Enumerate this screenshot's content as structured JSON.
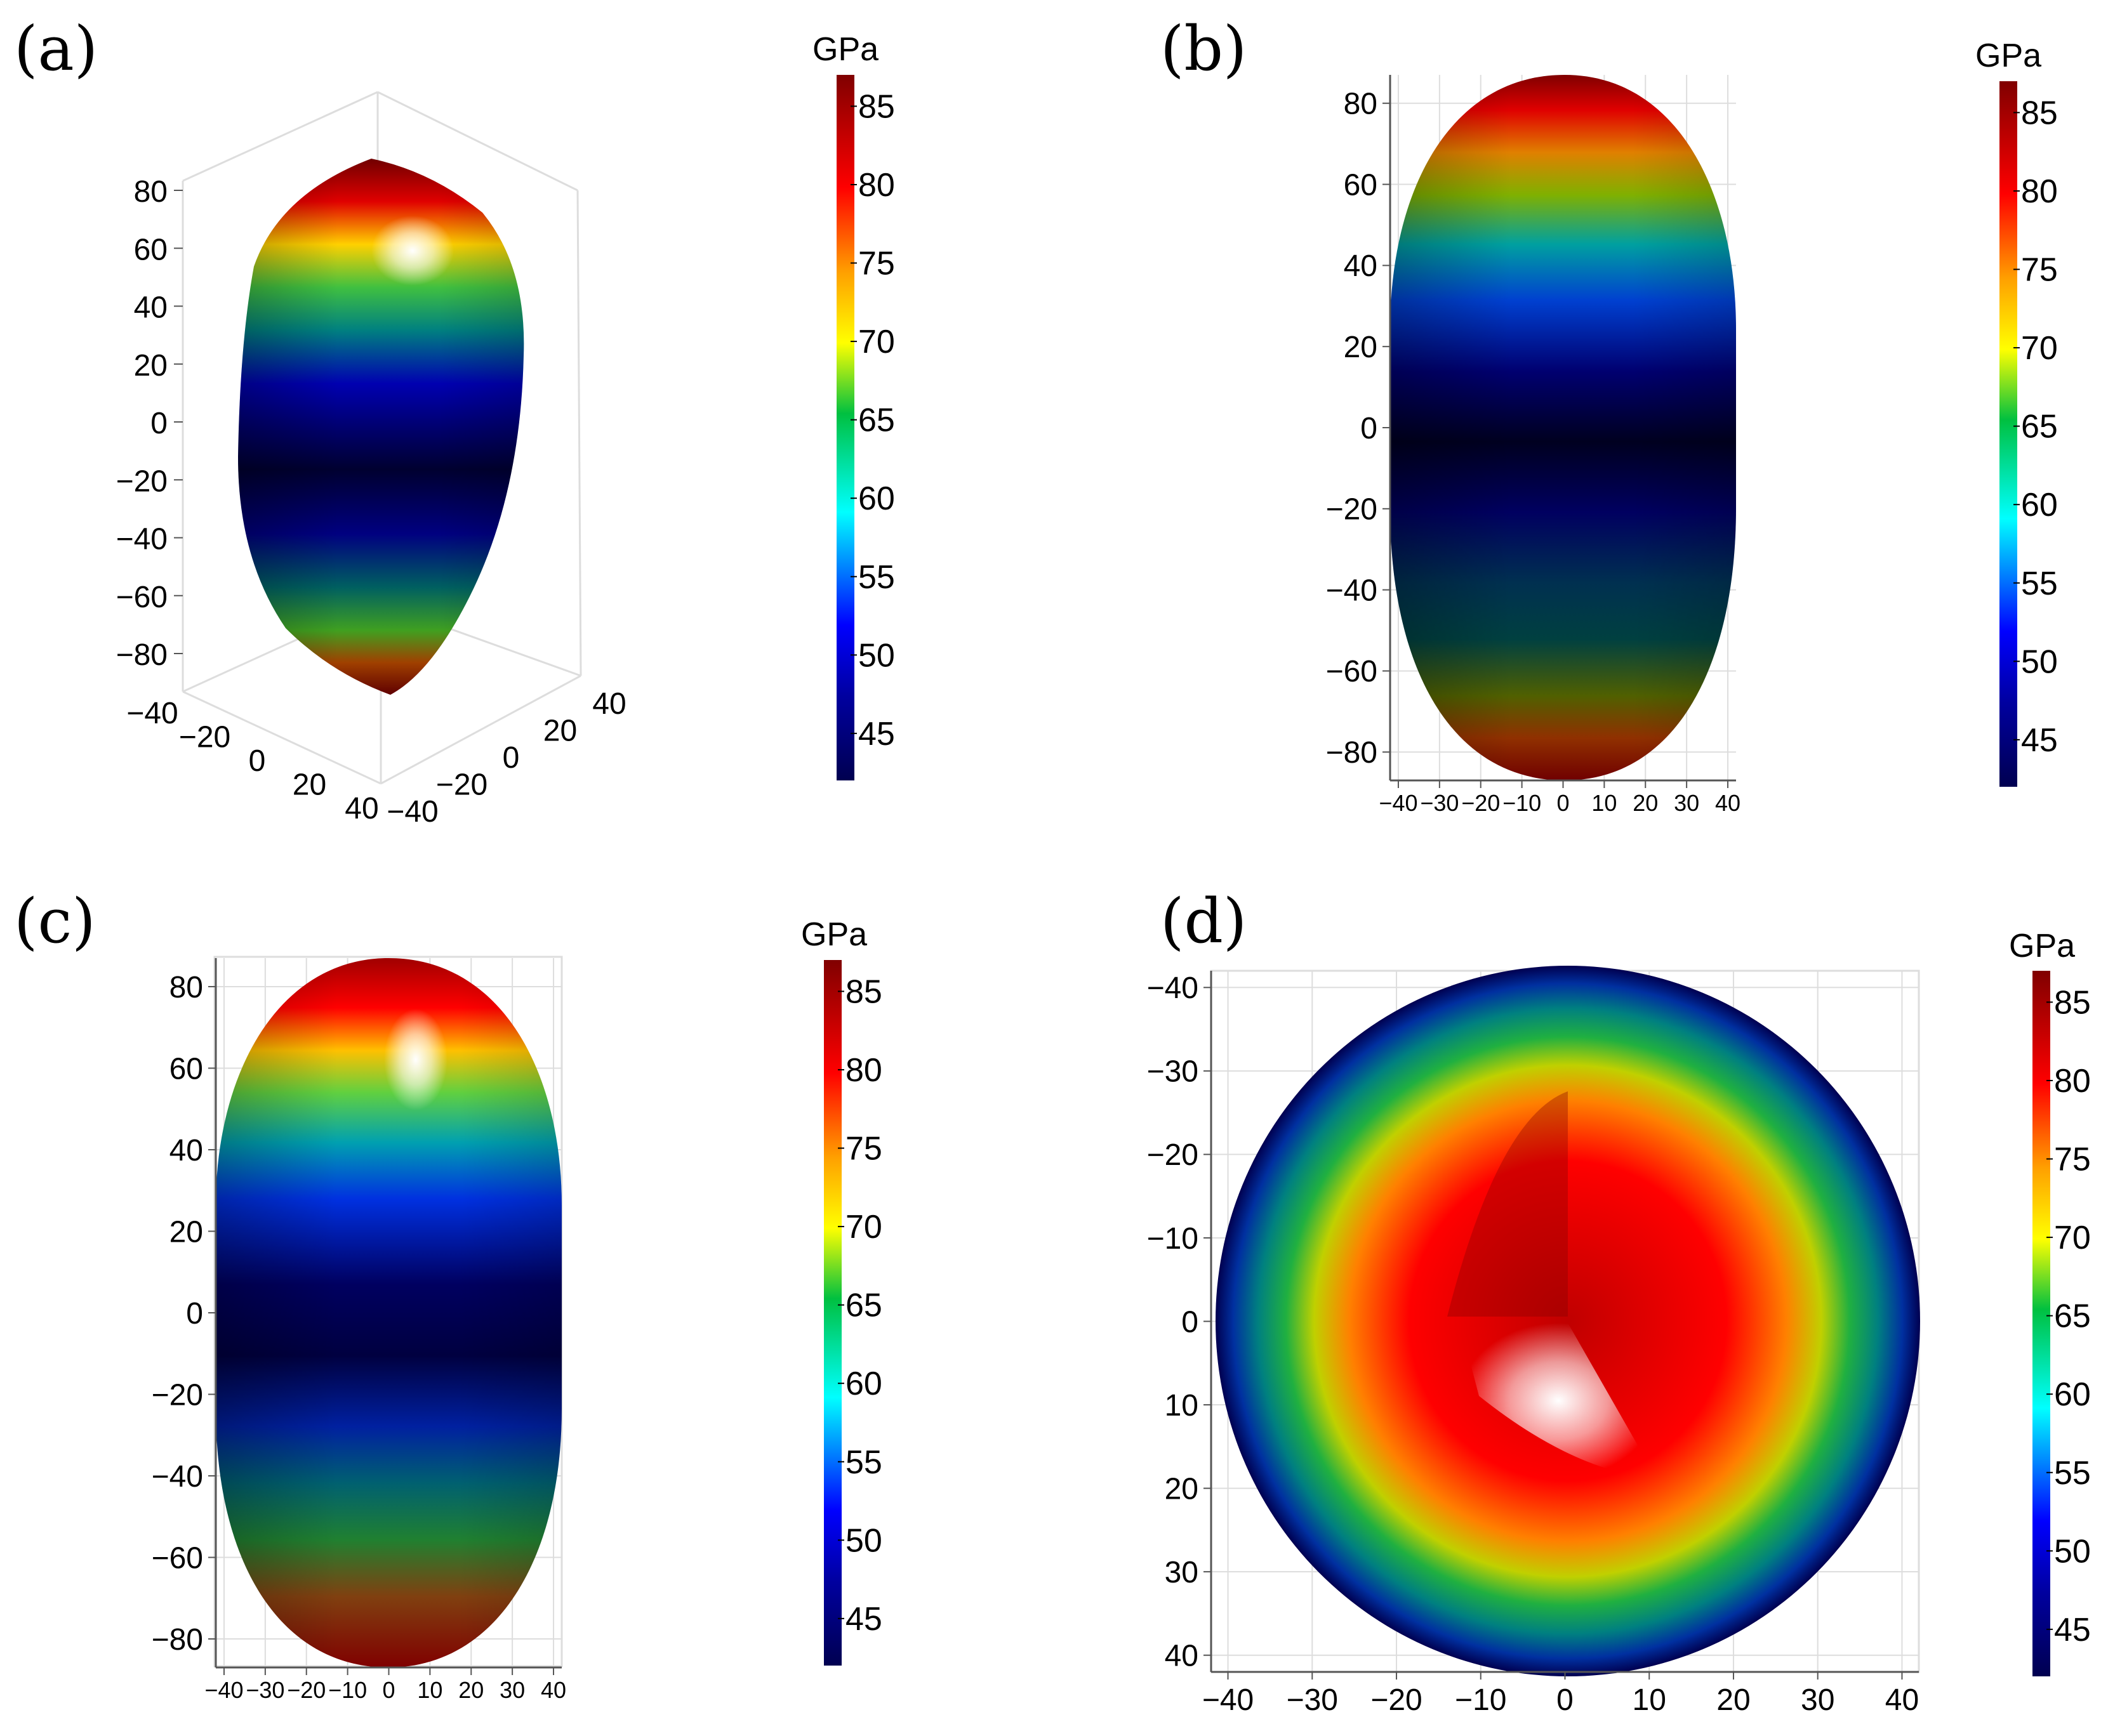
{
  "figure": {
    "panels": [
      {
        "label": "(a)",
        "cbar_title": "GPa"
      },
      {
        "label": "(b)",
        "cbar_title": "GPa"
      },
      {
        "label": "(c)",
        "cbar_title": "GPa"
      },
      {
        "label": "(d)",
        "cbar_title": "GPa"
      }
    ]
  },
  "colors": {
    "scale": [
      "#000050",
      "#000080",
      "#0000ff",
      "#00ffff",
      "#00c000",
      "#ffff00",
      "#ffa000",
      "#ff0000",
      "#800000"
    ],
    "highlight": "#ffffff",
    "grid": "#dddddd",
    "axis": "#555555"
  },
  "chart_data": [
    {
      "type": "surface",
      "label": "(a)",
      "view": "3d",
      "colorbar": {
        "title": "GPa",
        "ticks": [
          85,
          80,
          75,
          70,
          65,
          60,
          55,
          50,
          45
        ],
        "range": [
          42,
          87
        ]
      },
      "axes": {
        "z_ticks": [
          "80",
          "60",
          "40",
          "20",
          "0",
          "−20",
          "−40",
          "−60",
          "−80"
        ],
        "x_ticks": [
          "−40",
          "−20",
          "0",
          "20",
          "40"
        ],
        "y_ticks": [
          "40",
          "20",
          "0",
          "−20",
          "−40"
        ]
      }
    },
    {
      "type": "surface",
      "label": "(b)",
      "view": "side",
      "colorbar": {
        "title": "GPa",
        "ticks": [
          85,
          80,
          75,
          70,
          65,
          60,
          55,
          50,
          45
        ],
        "range": [
          42,
          87
        ]
      },
      "axes": {
        "y_ticks": [
          "80",
          "60",
          "40",
          "20",
          "0",
          "−20",
          "−40",
          "−60",
          "−80"
        ],
        "x_ticks": [
          "−40",
          "−30",
          "−20",
          "−10",
          "0",
          "10",
          "20",
          "30",
          "40"
        ],
        "ylim": [
          -87,
          87
        ],
        "xlim": [
          -42,
          42
        ]
      }
    },
    {
      "type": "surface",
      "label": "(c)",
      "view": "side",
      "colorbar": {
        "title": "GPa",
        "ticks": [
          85,
          80,
          75,
          70,
          65,
          60,
          55,
          50,
          45
        ],
        "range": [
          42,
          87
        ]
      },
      "axes": {
        "y_ticks": [
          "80",
          "60",
          "40",
          "20",
          "0",
          "−20",
          "−40",
          "−60",
          "−80"
        ],
        "x_ticks": [
          "−40",
          "−30",
          "−20",
          "−10",
          "0",
          "10",
          "20",
          "30",
          "40"
        ],
        "ylim": [
          -87,
          87
        ],
        "xlim": [
          -42,
          42
        ]
      }
    },
    {
      "type": "surface",
      "label": "(d)",
      "view": "top",
      "colorbar": {
        "title": "GPa",
        "ticks": [
          85,
          80,
          75,
          70,
          65,
          60,
          55,
          50,
          45
        ],
        "range": [
          42,
          87
        ]
      },
      "axes": {
        "y_ticks": [
          "−40",
          "−30",
          "−20",
          "−10",
          "0",
          "10",
          "20",
          "30",
          "40"
        ],
        "x_ticks": [
          "−40",
          "−30",
          "−20",
          "−10",
          "0",
          "10",
          "20",
          "30",
          "40"
        ],
        "ylim": [
          -42,
          42
        ],
        "xlim": [
          -42,
          42
        ]
      }
    }
  ]
}
